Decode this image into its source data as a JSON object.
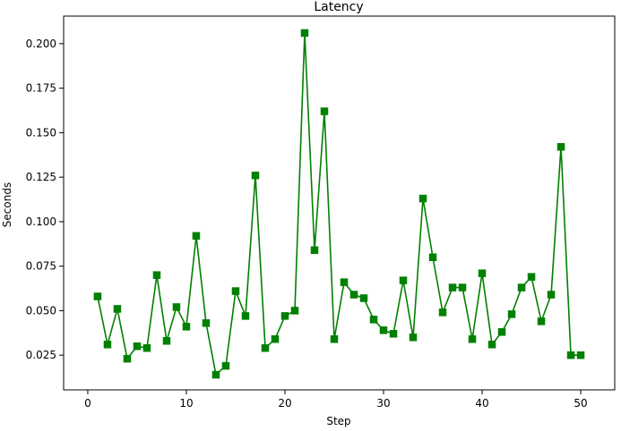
{
  "chart_data": {
    "type": "line",
    "title": "Latency",
    "xlabel": "Step",
    "ylabel": "Seconds",
    "xlim": [
      -2.45,
      53.45
    ],
    "ylim": [
      0.0055,
      0.2155
    ],
    "xticks": [
      0,
      10,
      20,
      30,
      40,
      50
    ],
    "yticks": [
      0.025,
      0.05,
      0.075,
      0.1,
      0.125,
      0.15,
      0.175,
      0.2
    ],
    "xtick_labels": [
      "0",
      "10",
      "20",
      "30",
      "40",
      "50"
    ],
    "ytick_labels": [
      "0.025",
      "0.050",
      "0.075",
      "0.100",
      "0.125",
      "0.150",
      "0.175",
      "0.200"
    ],
    "grid": false,
    "legend": "none",
    "colors": {
      "line": "#008000",
      "marker": "#008000"
    },
    "marker": "square",
    "series": [
      {
        "x": [
          1,
          2,
          3,
          4,
          5,
          6,
          7,
          8,
          9,
          10,
          11,
          12,
          13,
          14,
          15,
          16,
          17,
          18,
          19,
          20,
          21,
          22,
          23,
          24,
          25,
          26,
          27,
          28,
          29,
          30,
          31,
          32,
          33,
          34,
          35,
          36,
          37,
          38,
          39,
          40,
          41,
          42,
          43,
          44,
          45,
          46,
          47,
          48,
          49,
          50
        ],
        "values": [
          0.058,
          0.031,
          0.051,
          0.023,
          0.03,
          0.029,
          0.07,
          0.033,
          0.052,
          0.041,
          0.092,
          0.043,
          0.014,
          0.019,
          0.061,
          0.047,
          0.126,
          0.029,
          0.034,
          0.047,
          0.05,
          0.206,
          0.084,
          0.162,
          0.034,
          0.066,
          0.059,
          0.057,
          0.045,
          0.039,
          0.037,
          0.067,
          0.035,
          0.113,
          0.08,
          0.049,
          0.063,
          0.063,
          0.034,
          0.071,
          0.031,
          0.038,
          0.048,
          0.063,
          0.069,
          0.044,
          0.059,
          0.142,
          0.025,
          0.025
        ]
      }
    ]
  }
}
